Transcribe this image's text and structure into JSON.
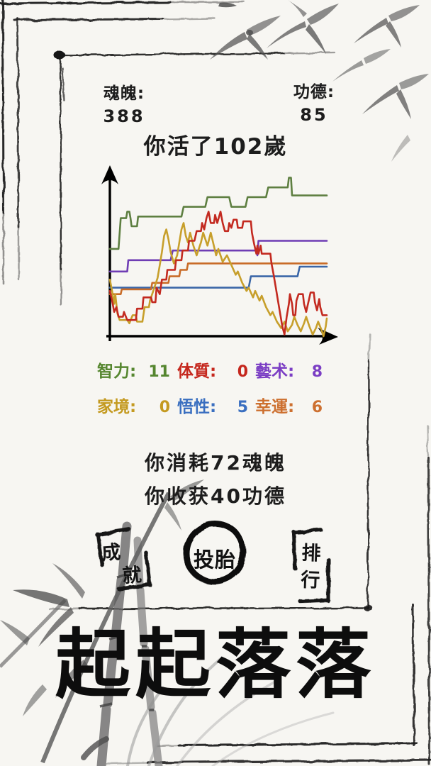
{
  "header": {
    "soul_label": "魂魄:",
    "soul_value": "388",
    "merit_label": "功德:",
    "merit_value": "85"
  },
  "title": "你活了102嵗",
  "stats": {
    "items": [
      {
        "label": "智力:",
        "value": "11",
        "color": "#55862f"
      },
      {
        "label": "体質:",
        "value": "0",
        "color": "#c5271d"
      },
      {
        "label": "藝术:",
        "value": "8",
        "color": "#7b3ec4"
      },
      {
        "label": "家境:",
        "value": "0",
        "color": "#c49a20"
      },
      {
        "label": "悟性:",
        "value": "5",
        "color": "#3a6fc0"
      },
      {
        "label": "幸運:",
        "value": "6",
        "color": "#cd7030"
      }
    ]
  },
  "summary": {
    "line1": "你消耗72魂魄",
    "line2": "你收获40功德"
  },
  "buttons": {
    "achievement_chars": [
      "成",
      "就"
    ],
    "reincarnate_label": "投胎",
    "ranking_chars": [
      "排",
      "行"
    ]
  },
  "footer_title": "起起落落",
  "colors": {
    "ink": "#1c1c1c",
    "paper": "#f7f6f2"
  },
  "chart_data": {
    "type": "line",
    "title": "",
    "xlabel": "",
    "ylabel": "",
    "axes": {
      "x_ticks": [],
      "y_ticks": [],
      "arrows": true,
      "grid": false
    },
    "coord_range": {
      "x": [
        0,
        100
      ],
      "y": [
        0,
        100
      ]
    },
    "legend_position": "none (colors match attribute labels below chart)",
    "series": [
      {
        "name": "悟性",
        "color": "#3a66a7",
        "points": [
          [
            0,
            30
          ],
          [
            64,
            30
          ],
          [
            65,
            37
          ],
          [
            86.5,
            37
          ],
          [
            87.5,
            43
          ],
          [
            100,
            43
          ]
        ]
      },
      {
        "name": "幸運",
        "color": "#c96c28",
        "points": [
          [
            0,
            26
          ],
          [
            5,
            26
          ],
          [
            5.5,
            29
          ],
          [
            19,
            29
          ],
          [
            19.5,
            33
          ],
          [
            27,
            33
          ],
          [
            27.5,
            37
          ],
          [
            32,
            37
          ],
          [
            32.5,
            41
          ],
          [
            35.5,
            41
          ],
          [
            36,
            45
          ],
          [
            100,
            45
          ]
        ]
      },
      {
        "name": "藝术",
        "color": "#6f3db4",
        "points": [
          [
            0,
            40
          ],
          [
            8,
            40
          ],
          [
            8.5,
            47
          ],
          [
            28,
            47
          ],
          [
            29,
            53
          ],
          [
            67.5,
            53
          ],
          [
            68,
            50
          ],
          [
            68.5,
            59
          ],
          [
            100,
            59
          ]
        ]
      },
      {
        "name": "智力",
        "color": "#5e7f41",
        "points": [
          [
            0,
            54
          ],
          [
            4,
            54
          ],
          [
            5,
            73
          ],
          [
            7.5,
            73
          ],
          [
            8,
            77
          ],
          [
            9,
            77
          ],
          [
            9.5,
            73
          ],
          [
            10,
            68
          ],
          [
            12.5,
            68
          ],
          [
            13,
            74
          ],
          [
            33,
            74
          ],
          [
            34,
            80
          ],
          [
            44,
            80
          ],
          [
            45,
            86
          ],
          [
            55,
            86
          ],
          [
            56,
            80
          ],
          [
            62.5,
            80
          ],
          [
            63.5,
            86
          ],
          [
            72,
            86
          ],
          [
            73,
            92
          ],
          [
            82,
            92
          ],
          [
            82.5,
            98
          ],
          [
            83.5,
            98
          ],
          [
            84,
            87
          ],
          [
            100,
            87
          ]
        ]
      },
      {
        "name": "家境",
        "color": "#c79f2b",
        "points": [
          [
            0,
            35
          ],
          [
            1,
            28
          ],
          [
            2,
            20
          ],
          [
            2.5,
            26
          ],
          [
            3.5,
            14
          ],
          [
            4.5,
            10
          ],
          [
            8,
            10
          ],
          [
            9,
            8
          ],
          [
            10.5,
            13
          ],
          [
            12,
            13
          ],
          [
            12.5,
            9
          ],
          [
            15,
            9
          ],
          [
            16,
            18
          ],
          [
            18,
            18
          ],
          [
            18.5,
            22
          ],
          [
            20,
            28
          ],
          [
            22,
            36
          ],
          [
            23,
            44
          ],
          [
            24,
            52
          ],
          [
            25,
            62
          ],
          [
            26,
            66
          ],
          [
            27,
            60
          ],
          [
            28,
            52
          ],
          [
            29.5,
            45
          ],
          [
            31,
            50
          ],
          [
            33,
            66
          ],
          [
            34,
            70
          ],
          [
            35,
            62
          ],
          [
            36,
            58
          ],
          [
            37,
            64
          ],
          [
            38.5,
            56
          ],
          [
            40,
            50
          ],
          [
            42,
            58
          ],
          [
            43,
            64
          ],
          [
            45,
            56
          ],
          [
            46.5,
            64
          ],
          [
            49,
            50
          ],
          [
            50,
            54
          ],
          [
            52,
            46
          ],
          [
            54,
            50
          ],
          [
            56,
            44
          ],
          [
            58,
            38
          ],
          [
            59,
            40
          ],
          [
            61,
            33
          ],
          [
            63,
            28
          ],
          [
            64,
            30
          ],
          [
            66,
            24
          ],
          [
            67,
            28
          ],
          [
            69,
            22
          ],
          [
            70,
            25
          ],
          [
            72,
            18
          ],
          [
            74,
            13
          ],
          [
            75,
            15
          ],
          [
            77,
            9
          ],
          [
            79,
            5
          ],
          [
            80.5,
            9
          ],
          [
            82,
            3
          ],
          [
            84,
            7
          ],
          [
            85,
            12
          ],
          [
            86.5,
            7
          ],
          [
            88,
            3
          ],
          [
            89.5,
            8
          ],
          [
            90.5,
            12
          ],
          [
            92,
            6
          ],
          [
            93.5,
            1
          ],
          [
            95,
            5
          ],
          [
            96,
            9
          ],
          [
            97.5,
            4
          ],
          [
            98.5,
            0
          ],
          [
            99.5,
            6
          ],
          [
            100,
            11
          ]
        ]
      },
      {
        "name": "体質",
        "color": "#c32a20",
        "points": [
          [
            0,
            28
          ],
          [
            1,
            22
          ],
          [
            2,
            15
          ],
          [
            3,
            18
          ],
          [
            4,
            12
          ],
          [
            6,
            12
          ],
          [
            6.5,
            15
          ],
          [
            8,
            10
          ],
          [
            12,
            10
          ],
          [
            12.5,
            17
          ],
          [
            15,
            17
          ],
          [
            15.5,
            24
          ],
          [
            19,
            24
          ],
          [
            19.5,
            21
          ],
          [
            21,
            21
          ],
          [
            21.5,
            30
          ],
          [
            23,
            26
          ],
          [
            24,
            35
          ],
          [
            26,
            35
          ],
          [
            26.5,
            41
          ],
          [
            30,
            41
          ],
          [
            30.5,
            47
          ],
          [
            33,
            47
          ],
          [
            33.5,
            53
          ],
          [
            36,
            53
          ],
          [
            36.5,
            59
          ],
          [
            39,
            59
          ],
          [
            40,
            65
          ],
          [
            42,
            65
          ],
          [
            42.5,
            70
          ],
          [
            43.5,
            66
          ],
          [
            44.5,
            73
          ],
          [
            45.5,
            77
          ],
          [
            46.5,
            70
          ],
          [
            48,
            70
          ],
          [
            48.5,
            75
          ],
          [
            49.5,
            70
          ],
          [
            51,
            77
          ],
          [
            52,
            70
          ],
          [
            53,
            65
          ],
          [
            54.5,
            65
          ],
          [
            55,
            70
          ],
          [
            56,
            67
          ],
          [
            57,
            72
          ],
          [
            58.5,
            72
          ],
          [
            59,
            67
          ],
          [
            61,
            67
          ],
          [
            61.5,
            71
          ],
          [
            65,
            71
          ],
          [
            65.5,
            64
          ],
          [
            66.5,
            57
          ],
          [
            67.5,
            51
          ],
          [
            68,
            56
          ],
          [
            68.5,
            51
          ],
          [
            69.5,
            56
          ],
          [
            70,
            51
          ],
          [
            74,
            51
          ],
          [
            74.5,
            45
          ],
          [
            75.5,
            38
          ],
          [
            76.5,
            30
          ],
          [
            77.5,
            22
          ],
          [
            78.5,
            14
          ],
          [
            79.5,
            6
          ],
          [
            80.5,
            1
          ],
          [
            81.5,
            12
          ],
          [
            82.5,
            20
          ],
          [
            83,
            26
          ],
          [
            84,
            20
          ],
          [
            84.5,
            13
          ],
          [
            85.5,
            13
          ],
          [
            86,
            22
          ],
          [
            87,
            26
          ],
          [
            89,
            26
          ],
          [
            89.5,
            20
          ],
          [
            90.5,
            15
          ],
          [
            91.5,
            21
          ],
          [
            92.5,
            27
          ],
          [
            94,
            27
          ],
          [
            94.5,
            21
          ],
          [
            95.5,
            16
          ],
          [
            96.5,
            23
          ],
          [
            97,
            18
          ],
          [
            98,
            13
          ],
          [
            100,
            13
          ]
        ]
      }
    ]
  }
}
